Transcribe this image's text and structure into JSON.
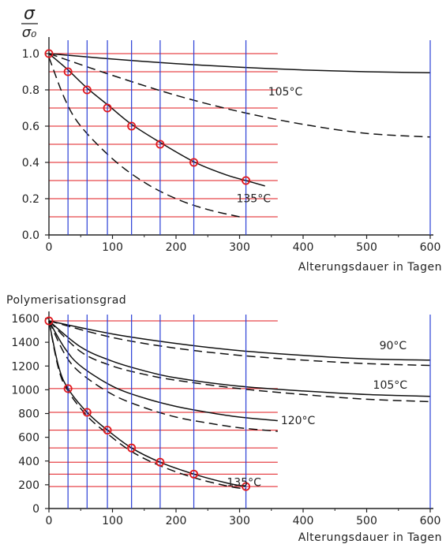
{
  "chart_data": [
    {
      "type": "line",
      "ylabel_numerator": "σ",
      "ylabel_denominator": "σ₀",
      "xlabel": "Alterungsdauer in Tagen",
      "xlim": [
        0,
        600
      ],
      "ylim": [
        0,
        1.0
      ],
      "x_ticks": [
        0,
        100,
        200,
        300,
        400,
        500,
        600
      ],
      "x_tick_labels": [
        "0",
        "100",
        "200",
        "300",
        "400",
        "500",
        "600"
      ],
      "y_ticks": [
        0,
        0.2,
        0.4,
        0.6,
        0.8,
        1.0
      ],
      "y_tick_labels": [
        "0.0",
        "0.2",
        "0.4",
        "0.6",
        "0.8",
        "1.0"
      ],
      "series": [
        {
          "style": "solid",
          "x": [
            0,
            100,
            200,
            300,
            400,
            500,
            600
          ],
          "y": [
            1.0,
            0.97,
            0.945,
            0.925,
            0.91,
            0.9,
            0.895
          ]
        },
        {
          "style": "dashed",
          "x": [
            0,
            100,
            200,
            300,
            400,
            500,
            600
          ],
          "y": [
            1.0,
            0.88,
            0.77,
            0.68,
            0.61,
            0.56,
            0.54
          ]
        },
        {
          "style": "solid",
          "x": [
            0,
            30,
            60,
            95,
            130,
            175,
            230,
            280,
            310,
            340
          ],
          "y": [
            1.0,
            0.91,
            0.81,
            0.71,
            0.61,
            0.51,
            0.4,
            0.33,
            0.3,
            0.27
          ]
        },
        {
          "style": "dashed",
          "x": [
            0,
            25,
            50,
            100,
            150,
            200,
            250,
            300
          ],
          "y": [
            0.98,
            0.75,
            0.6,
            0.42,
            0.29,
            0.2,
            0.14,
            0.1
          ]
        }
      ],
      "markers": {
        "x": [
          0,
          30,
          60,
          92,
          130,
          175,
          228,
          310
        ],
        "y": [
          1.0,
          0.9,
          0.8,
          0.7,
          0.6,
          0.5,
          0.4,
          0.3
        ]
      },
      "curve_labels": [
        {
          "text": "105°C",
          "x": 345,
          "y": 0.77
        },
        {
          "text": "135°C",
          "x": 295,
          "y": 0.18
        }
      ],
      "guide_lines": {
        "horizontal_y": [
          0.1,
          0.2,
          0.3,
          0.4,
          0.5,
          0.6,
          0.7,
          0.8,
          0.9,
          1.0
        ],
        "horizontal_xmax": 360,
        "vertical_x": [
          30,
          60,
          92,
          130,
          175,
          228,
          310,
          600
        ],
        "vertical_color": "#2a3fd6",
        "horizontal_color": "#e0181e"
      }
    },
    {
      "type": "line",
      "ylabel": "Polymerisationsgrad",
      "xlabel": "Alterungsdauer in Tagen",
      "xlim": [
        0,
        600
      ],
      "ylim": [
        0,
        1600
      ],
      "x_ticks": [
        0,
        100,
        200,
        300,
        400,
        500,
        600
      ],
      "x_tick_labels": [
        "0",
        "100",
        "200",
        "300",
        "400",
        "500",
        "600"
      ],
      "y_ticks": [
        0,
        200,
        400,
        600,
        800,
        1000,
        1200,
        1400,
        1600
      ],
      "y_tick_labels": [
        "0",
        "200",
        "400",
        "600",
        "800",
        "1000",
        "1200",
        "1400",
        "1600"
      ],
      "series": [
        {
          "style": "solid",
          "x": [
            0,
            100,
            200,
            300,
            400,
            500,
            600
          ],
          "y": [
            1580,
            1470,
            1390,
            1330,
            1290,
            1260,
            1250
          ]
        },
        {
          "style": "dashed",
          "x": [
            0,
            100,
            200,
            300,
            400,
            500,
            600
          ],
          "y": [
            1580,
            1440,
            1350,
            1290,
            1250,
            1220,
            1205
          ]
        },
        {
          "style": "solid",
          "x": [
            0,
            50,
            100,
            150,
            200,
            300,
            400,
            500,
            600
          ],
          "y": [
            1580,
            1360,
            1240,
            1160,
            1100,
            1030,
            990,
            960,
            945
          ]
        },
        {
          "style": "dashed",
          "x": [
            0,
            50,
            100,
            150,
            200,
            300,
            400,
            500,
            600
          ],
          "y": [
            1580,
            1320,
            1200,
            1130,
            1080,
            1010,
            960,
            920,
            900
          ]
        },
        {
          "style": "solid",
          "x": [
            0,
            25,
            50,
            100,
            150,
            200,
            250,
            300,
            360
          ],
          "y": [
            1580,
            1350,
            1200,
            1030,
            930,
            860,
            810,
            770,
            740
          ]
        },
        {
          "style": "dashed",
          "x": [
            0,
            25,
            50,
            100,
            150,
            200,
            250,
            300,
            360
          ],
          "y": [
            1580,
            1300,
            1140,
            960,
            850,
            770,
            720,
            680,
            650
          ]
        },
        {
          "style": "solid",
          "x": [
            0,
            15,
            30,
            60,
            92,
            130,
            175,
            228,
            280,
            310
          ],
          "y": [
            1580,
            1200,
            1010,
            810,
            660,
            510,
            390,
            290,
            215,
            185
          ]
        },
        {
          "style": "dashed",
          "x": [
            0,
            15,
            30,
            60,
            92,
            130,
            175,
            228,
            280,
            310
          ],
          "y": [
            1580,
            1180,
            990,
            780,
            630,
            480,
            360,
            260,
            190,
            165
          ]
        }
      ],
      "markers": {
        "x": [
          0,
          30,
          60,
          92,
          130,
          175,
          228,
          310
        ],
        "y": [
          1580,
          1010,
          810,
          660,
          510,
          390,
          290,
          185
        ]
      },
      "curve_labels": [
        {
          "text": "90°C",
          "x": 520,
          "y": 1340
        },
        {
          "text": "105°C",
          "x": 510,
          "y": 1010
        },
        {
          "text": "120°C",
          "x": 365,
          "y": 710
        },
        {
          "text": "135°C",
          "x": 280,
          "y": 190
        }
      ],
      "guide_lines": {
        "horizontal_y": [
          185,
          290,
          390,
          510,
          660,
          810,
          1010,
          1580
        ],
        "horizontal_xmax": 360,
        "vertical_x": [
          30,
          60,
          92,
          130,
          175,
          228,
          310,
          600
        ],
        "vertical_color": "#2a3fd6",
        "horizontal_color": "#e0181e"
      }
    }
  ]
}
